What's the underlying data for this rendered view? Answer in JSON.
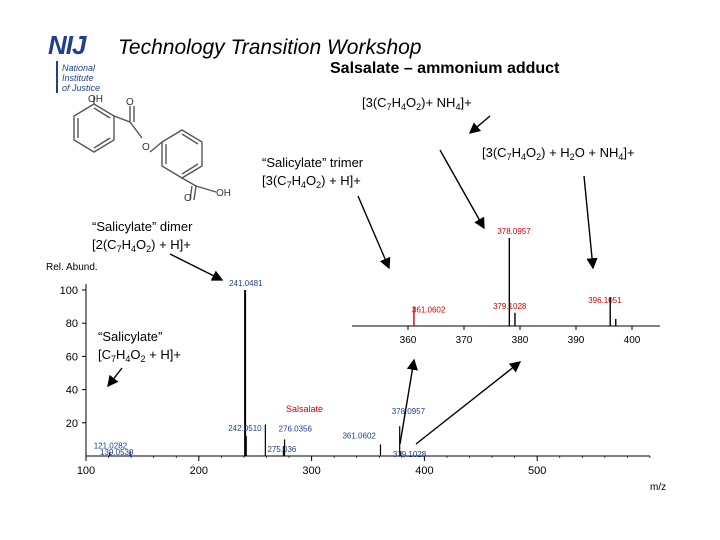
{
  "header": {
    "logo_text": "NIJ",
    "logo_lines": [
      "National",
      "Institute",
      "of Justice"
    ],
    "title": "Technology Transition Workshop",
    "subtitle": "Salsalate – ammonium adduct"
  },
  "molecule": {
    "atom_labels": [
      "OH",
      "O",
      "O",
      "O",
      "OH"
    ]
  },
  "annotations": {
    "trimer_nh4": {
      "pre": "[3(C",
      "s1": "7",
      "m1": "H",
      "s2": "4",
      "m2": "O",
      "s3": "2",
      "post": ")+ NH",
      "s4": "4",
      "end": "]+"
    },
    "trimer_h2o_nh4": {
      "pre": "[3(C",
      "s1": "7",
      "m1": "H",
      "s2": "4",
      "m2": "O",
      "s3": "2",
      "post": ") + H",
      "s4": "2",
      "end": "O + NH",
      "s5": "4",
      "end2": "]+"
    },
    "trimer": {
      "line1": "“Salicylate” trimer",
      "pre": "[3(C",
      "s1": "7",
      "m1": "H",
      "s2": "4",
      "m2": "O",
      "s3": "2",
      "post": ") + H]+"
    },
    "dimer": {
      "line1": "“Salicylate” dimer",
      "pre": "[2(C",
      "s1": "7",
      "m1": "H",
      "s2": "4",
      "m2": "O",
      "s3": "2",
      "post": ") + H]+"
    },
    "monomer": {
      "line1": "“Salicylate”",
      "pre": "[C",
      "s1": "7",
      "m1": "H",
      "s2": "4",
      "m2": "O",
      "s3": "2",
      "post": " + H]+"
    }
  },
  "chart_data": [
    {
      "type": "bar",
      "title": "",
      "ylabel": "Rel. Abund.",
      "xlabel": "m/z",
      "xlim": [
        100,
        600
      ],
      "ylim": [
        0,
        100
      ],
      "xticks": [
        100,
        200,
        300,
        400,
        500
      ],
      "yticks": [
        20,
        40,
        60,
        80,
        100
      ],
      "ytick_labels": [
        "20",
        "40",
        "60",
        "80",
        "100"
      ],
      "inset_label": "Salsalate",
      "inset_label_color": "#cc0000",
      "peaks": [
        {
          "x": 121.0282,
          "y": 2.0,
          "label": "121.0282"
        },
        {
          "x": 139.0539,
          "y": 3.0,
          "label": "139.0539"
        },
        {
          "x": 241.0481,
          "y": 100.0,
          "label": "241.0481"
        },
        {
          "x": 242.051,
          "y": 12.0,
          "label": "242.0510"
        },
        {
          "x": 259.0,
          "y": 19.0,
          "label": ""
        },
        {
          "x": 275.036,
          "y": 6.0,
          "label": "275.036"
        },
        {
          "x": 276.0356,
          "y": 10.0,
          "label": "276.0356"
        },
        {
          "x": 361.0602,
          "y": 7.0,
          "label": "361.0602"
        },
        {
          "x": 378.0957,
          "y": 18.0,
          "label": "378.0957"
        },
        {
          "x": 379.1028,
          "y": 3.0,
          "label": "379.1028"
        }
      ]
    },
    {
      "type": "bar",
      "title": "",
      "xlim": [
        350,
        405
      ],
      "ylim": [
        0,
        100
      ],
      "xticks": [
        360,
        370,
        380,
        390,
        400
      ],
      "xtick_labels": [
        "360",
        "370",
        "380",
        "390",
        "400"
      ],
      "peaks": [
        {
          "x": 361.0602,
          "y": 22.0,
          "label": "361.0602",
          "color": "#cc0000"
        },
        {
          "x": 378.0957,
          "y": 100.0,
          "label": "378.0957"
        },
        {
          "x": 379.1028,
          "y": 15.0,
          "label": "379.1028"
        },
        {
          "x": 396.1051,
          "y": 33.0,
          "label": "396.1051"
        },
        {
          "x": 397.1,
          "y": 8.0,
          "label": ""
        }
      ]
    }
  ]
}
